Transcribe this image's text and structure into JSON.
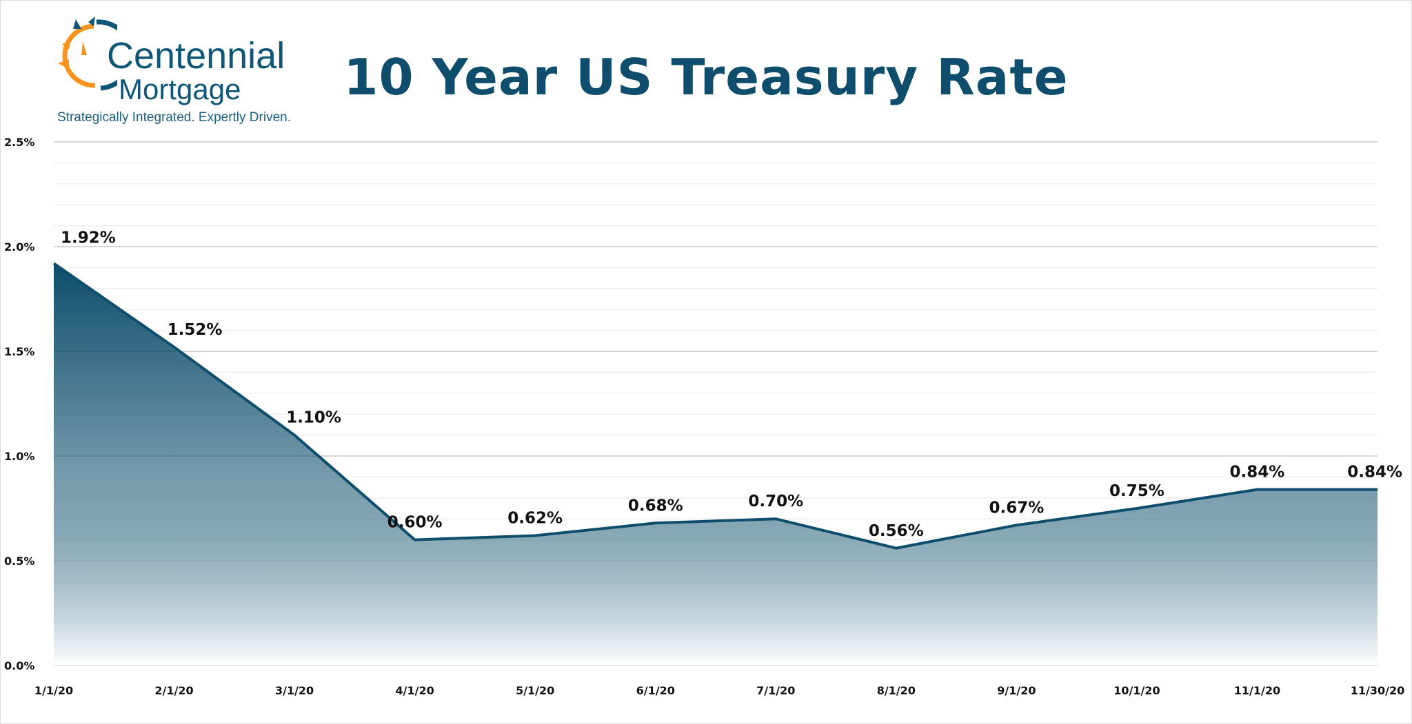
{
  "logo": {
    "name_line1": "Centennial",
    "name_line2": "Mortgage",
    "tagline": "Strategically Integrated. Expertly Driven."
  },
  "chart_data": {
    "type": "area",
    "title": "10 Year US Treasury Rate",
    "categories": [
      "1/1/20",
      "2/1/20",
      "3/1/20",
      "4/1/20",
      "5/1/20",
      "6/1/20",
      "7/1/20",
      "8/1/20",
      "9/1/20",
      "10/1/20",
      "11/1/20",
      "11/30/20"
    ],
    "values": [
      1.92,
      1.52,
      1.1,
      0.6,
      0.62,
      0.68,
      0.7,
      0.56,
      0.67,
      0.75,
      0.84,
      0.84
    ],
    "data_labels": [
      "1.92%",
      "1.52%",
      "1.10%",
      "0.60%",
      "0.62%",
      "0.68%",
      "0.70%",
      "0.56%",
      "0.67%",
      "0.75%",
      "0.84%",
      "0.84%"
    ],
    "ylim": [
      0,
      2.5
    ],
    "yticks": [
      0,
      0.5,
      1.0,
      1.5,
      2.0,
      2.5
    ],
    "ytick_labels": [
      "0.0%",
      "0.5%",
      "1.0%",
      "1.5%",
      "2.0%",
      "2.5%"
    ],
    "minor_grid_step": 0.1,
    "grid": true,
    "legend": "none",
    "colors": {
      "line": "#0e4e6c",
      "fill_top": "#0e4e6c",
      "fill_bottom": "#ffffff",
      "title": "#0e4d6c",
      "logo_blue": "#0f5677",
      "logo_orange": "#f7941d"
    }
  }
}
